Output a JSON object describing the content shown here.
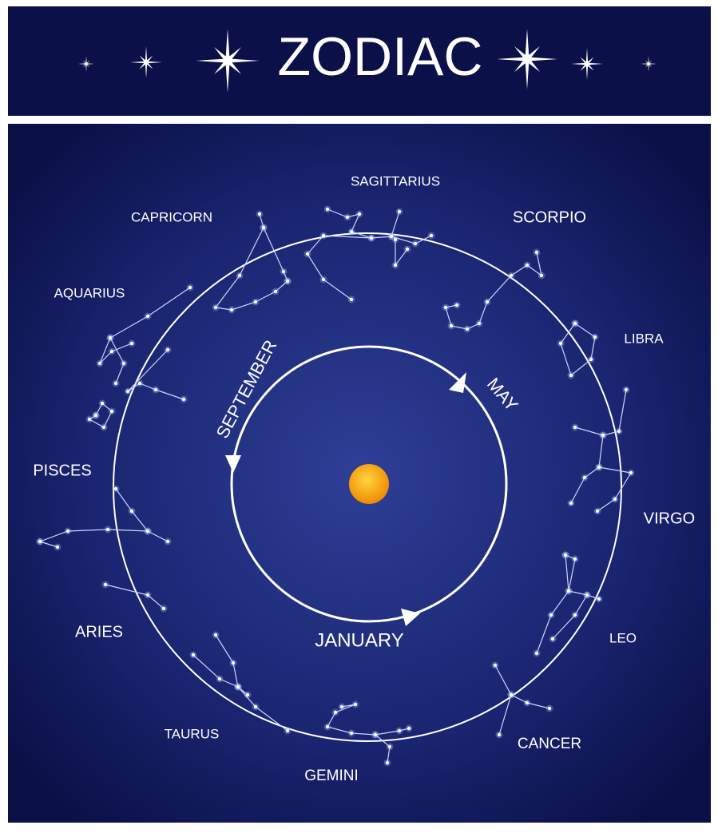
{
  "header": {
    "title": "ZODIAC"
  },
  "signs": [
    "SAGITTARIUS",
    "CAPRICORN",
    "SCORPIO",
    "AQUARIUS",
    "LIBRA",
    "PISCES",
    "VIRGO",
    "ARIES",
    "LEO",
    "TAURUS",
    "CANCER",
    "GEMINI"
  ],
  "months": [
    "MAY",
    "SEPTEMBER",
    "JANUARY"
  ]
}
